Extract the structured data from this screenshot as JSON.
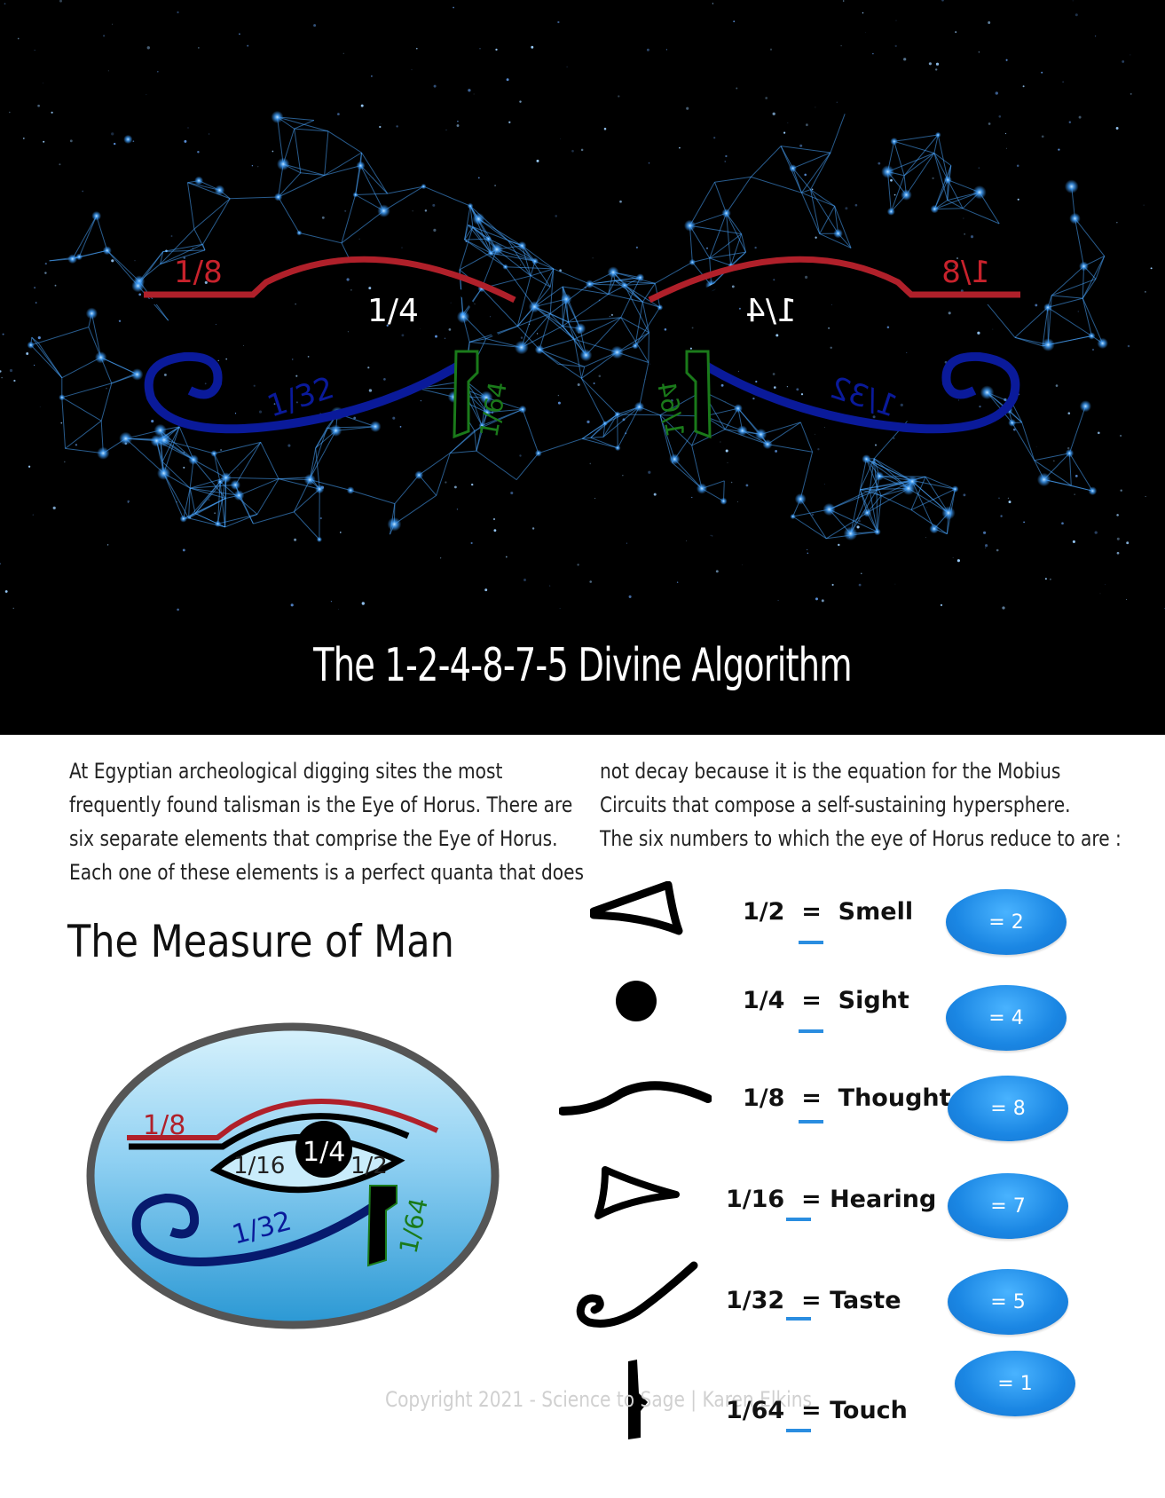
{
  "hero": {
    "title": "The 1-2-4-8-7-5 Divine Algorithm",
    "left_eye_labels": {
      "eyebrow": "1/8",
      "pupil": "1/4",
      "spiral": "1/32",
      "teardrop": "1/64"
    },
    "right_eye_labels": {
      "eyebrow": "1/8",
      "pupil": "1/4",
      "spiral": "1/32",
      "teardrop": "1/64"
    }
  },
  "intro_left": [
    "At Egyptian archeological digging sites the most",
    "frequently found talisman is the Eye of Horus.  There are",
    "six separate elements that comprise the Eye of Horus.",
    "Each one of these elements is a perfect quanta that does"
  ],
  "intro_right": [
    "not decay because it is the equation for the Mobius",
    "Circuits that compose a self-sustaining hypersphere.",
    "The six numbers to which the eye of Horus reduce to are :"
  ],
  "measure_title": "The Measure of Man",
  "eye_diagram_labels": {
    "eyebrow": "1/8",
    "left_corner": "1/16",
    "pupil": "1/4",
    "right_corner": "1/2",
    "spiral": "1/32",
    "teardrop": "1/64"
  },
  "rows": [
    {
      "fraction": "1/2",
      "sense": "Smell",
      "value": "= 2",
      "icon": "eye-corner-icon"
    },
    {
      "fraction": "1/4",
      "sense": "Sight",
      "value": "= 4",
      "icon": "pupil-icon"
    },
    {
      "fraction": "1/8",
      "sense": "Thought",
      "value": "= 8",
      "icon": "eyebrow-icon"
    },
    {
      "fraction": "1/16",
      "sense": "Hearing",
      "value": "= 7",
      "icon": "inner-corner-icon"
    },
    {
      "fraction": "1/32",
      "sense": "Taste",
      "value": "= 5",
      "icon": "spiral-icon"
    },
    {
      "fraction": "1/64",
      "sense": "Touch",
      "value": "= 1",
      "icon": "teardrop-icon"
    }
  ],
  "copyright": "Copyright 2021 - Science to Sage | Karen Elkins",
  "colors": {
    "network": "#3fa0ff",
    "eyebrow_red": "#b0202a",
    "spiral_blue": "#0a1a9a",
    "teardrop_green": "#1a7a1a",
    "pill_blue": "#1a86e3",
    "underline_blue": "#2a8de0"
  }
}
